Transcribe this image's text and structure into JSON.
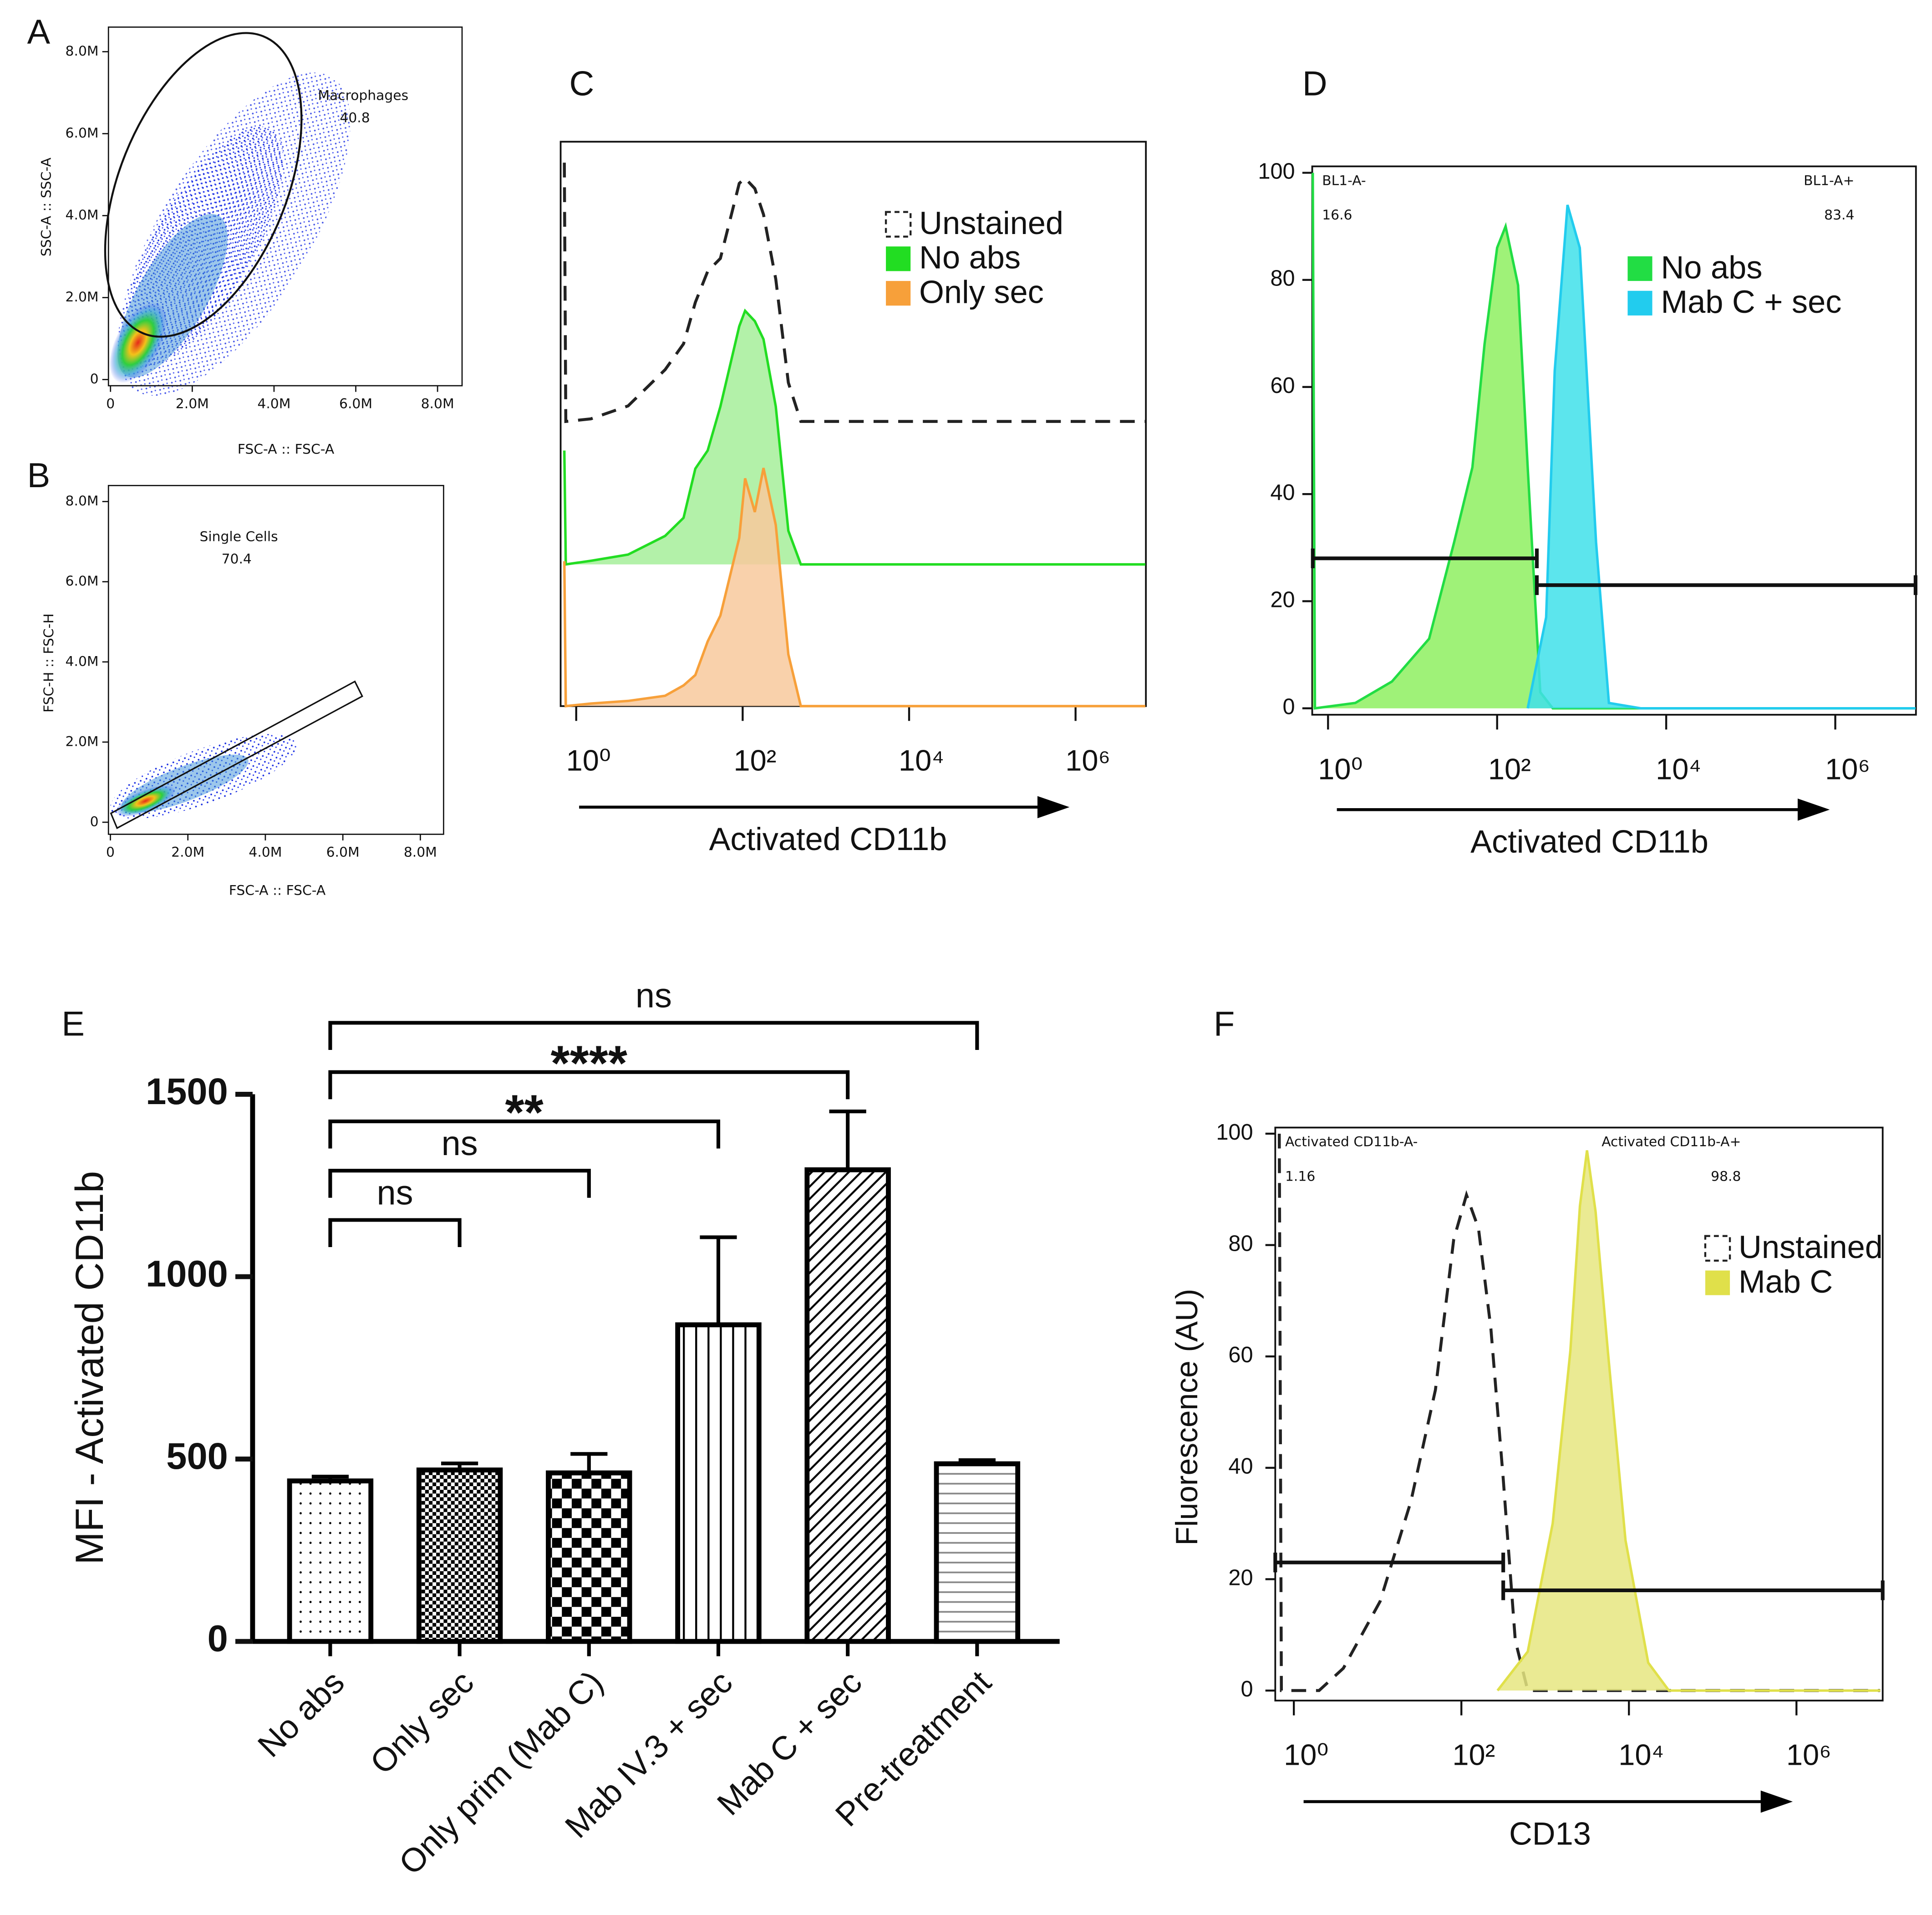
{
  "chart_data": [
    {
      "type": "scatter",
      "label": "A",
      "xlabel": "FSC-A :: FSC-A",
      "ylabel": "SSC-A :: SSC-A",
      "xlim": [
        -50000,
        8600000
      ],
      "ylim": [
        -150000,
        8600000
      ],
      "xticks": [
        0,
        {
          "value": 2000000,
          "label": "2.0M"
        },
        {
          "value": 4000000,
          "label": "4.0M"
        },
        {
          "value": 6000000,
          "label": "6.0M"
        },
        {
          "value": 8000000,
          "label": "8.0M"
        }
      ],
      "yticks": [
        0,
        {
          "value": 2000000,
          "label": "2.0M"
        },
        {
          "value": 4000000,
          "label": "4.0M"
        },
        {
          "value": 6000000,
          "label": "6.0M"
        },
        {
          "value": 8000000,
          "label": "8.0M"
        }
      ],
      "gate": {
        "name": "Macrophages",
        "value": 40.8
      }
    },
    {
      "type": "scatter",
      "label": "B",
      "xlabel": "FSC-A :: FSC-A",
      "ylabel": "FSC-H :: FSC-H",
      "xlim": [
        -50000,
        8600000
      ],
      "ylim": [
        -300000,
        8400000
      ],
      "xticks": [
        0,
        {
          "value": 2000000,
          "label": "2.0M"
        },
        {
          "value": 4000000,
          "label": "4.0M"
        },
        {
          "value": 6000000,
          "label": "6.0M"
        },
        {
          "value": 8000000,
          "label": "8.0M"
        }
      ],
      "yticks": [
        0,
        {
          "value": 2000000,
          "label": "2.0M"
        },
        {
          "value": 4000000,
          "label": "4.0M"
        },
        {
          "value": 6000000,
          "label": "6.0M"
        },
        {
          "value": 8000000,
          "label": "8.0M"
        }
      ],
      "gate": {
        "name": "Single Cells",
        "value": 70.4
      }
    },
    {
      "type": "line",
      "label": "C",
      "xlabel": "Activated CD11b",
      "xscale": "log",
      "xlim": [
        0.65,
        7000000
      ],
      "xticks": [
        {
          "value": 1,
          "label": "10⁰"
        },
        {
          "value": 100,
          "label": "10²"
        },
        {
          "value": 10000,
          "label": "10⁴"
        },
        {
          "value": 1000000,
          "label": "10⁶"
        }
      ],
      "x": [
        0.72,
        0.75,
        1.5,
        4.2,
        11.7,
        19.5,
        27,
        38,
        54,
        91,
        107,
        140,
        178,
        250,
        354,
        500,
        6900000
      ],
      "series": [
        {
          "name": "Unstained",
          "color": "#222222",
          "dash": true,
          "values": [
            100,
            0,
            1,
            6,
            20,
            30,
            46,
            58,
            63,
            92,
            94,
            90,
            80,
            55,
            15,
            0,
            0
          ]
        },
        {
          "name": "No abs",
          "color": "#22dd22",
          "fill": "#a6ef9a",
          "values": [
            44,
            0,
            1.4,
            3.8,
            11,
            18,
            37,
            44,
            61,
            92,
            98,
            94,
            87,
            61,
            13,
            0,
            0
          ]
        },
        {
          "name": "Only sec",
          "color": "#f7a03a",
          "fill": "#f8c99c",
          "values": [
            56,
            0,
            1,
            2,
            4,
            8,
            12,
            25,
            35,
            65,
            88,
            75,
            92,
            70,
            20,
            0,
            0
          ]
        }
      ]
    },
    {
      "type": "line",
      "label": "D",
      "xlabel": "Activated CD11b",
      "xscale": "log",
      "xlim": [
        0.65,
        9000000
      ],
      "ylim": [
        -1.2,
        101.2
      ],
      "xticks": [
        {
          "value": 1,
          "label": "10⁰"
        },
        {
          "value": 100,
          "label": "10²"
        },
        {
          "value": 10000,
          "label": "10⁴"
        },
        {
          "value": 1000000,
          "label": "10⁶"
        }
      ],
      "yticks": [
        0,
        20,
        40,
        60,
        80,
        100
      ],
      "series": [
        {
          "name": "No abs",
          "color": "#22dd44",
          "fill": "#8ef060",
          "x": [
            0.66,
            0.7,
            2.1,
            5.7,
            15.7,
            31,
            51,
            71,
            100,
            126,
            177,
            230,
            324,
            455,
            8900000
          ],
          "values": [
            100,
            0,
            1,
            5,
            13,
            31,
            45,
            68,
            86,
            90,
            79,
            45,
            3,
            0,
            0
          ]
        },
        {
          "name": "Mab C + sec",
          "color": "#22ccee",
          "fill": "#3fe0ea",
          "x": [
            230,
            380,
            480,
            680,
            950,
            1480,
            2100,
            5000,
            8900000
          ],
          "values": [
            0,
            17,
            63,
            94,
            86,
            31,
            1,
            0,
            0
          ]
        }
      ],
      "gates": [
        {
          "name": "BL1-A-",
          "value": 16.6,
          "x": [
            0.66,
            295
          ],
          "y": 28
        },
        {
          "name": "BL1-A+",
          "value": 83.4,
          "x": [
            295,
            8900000
          ],
          "y": 23
        }
      ]
    },
    {
      "type": "bar",
      "label": "E",
      "ylabel": "MFI - Activated CD11b",
      "ylim": [
        0,
        1500
      ],
      "yticks": [
        0,
        500,
        1000,
        1500
      ],
      "categories": [
        "No abs",
        "Only sec",
        "Only prim (Mab C)",
        "Mab IV.3 + sec",
        "Mab C + sec",
        "Pre-treatment"
      ],
      "values": [
        440,
        470,
        462,
        868,
        1293,
        487
      ],
      "errors": [
        12,
        18,
        52,
        240,
        160,
        10
      ],
      "color": "#000000",
      "annotations": [
        {
          "label": "ns",
          "from": 0,
          "to": 1
        },
        {
          "label": "ns",
          "from": 0,
          "to": 2
        },
        {
          "label": "**",
          "from": 0,
          "to": 3
        },
        {
          "label": "****",
          "from": 0,
          "to": 4
        },
        {
          "label": "ns",
          "from": 0,
          "to": 5
        }
      ]
    },
    {
      "type": "line",
      "label": "F",
      "xlabel": "CD13",
      "ylabel": "Fluorescence (AU)",
      "xscale": "log",
      "xlim": [
        0.6,
        10700000
      ],
      "ylim": [
        -1.8,
        101.1
      ],
      "xticks": [
        {
          "value": 1,
          "label": "10⁰"
        },
        {
          "value": 100,
          "label": "10²"
        },
        {
          "value": 10000,
          "label": "10⁴"
        },
        {
          "value": 1000000,
          "label": "10⁶"
        }
      ],
      "yticks": [
        0,
        20,
        40,
        60,
        80,
        100
      ],
      "series": [
        {
          "name": "Unstained",
          "color": "#222222",
          "dash": true,
          "x": [
            0.67,
            0.71,
            2,
            3.9,
            10.7,
            25,
            49,
            81,
            115,
            160,
            225,
            316,
            440,
            620,
            10000000
          ],
          "values": [
            100,
            0,
            0,
            4,
            16,
            34,
            54,
            81,
            89,
            83,
            65,
            38,
            9,
            0,
            0
          ]
        },
        {
          "name": "Mab C",
          "color": "#e0e04a",
          "fill": "#e6e680",
          "x": [
            270,
            620,
            1230,
            2000,
            2600,
            3160,
            4000,
            5600,
            9100,
            17000,
            30000,
            10000000
          ],
          "values": [
            0,
            7,
            30,
            61,
            87,
            97,
            86,
            61,
            27,
            5,
            0,
            0
          ]
        }
      ],
      "gates": [
        {
          "name": "Activated CD11b-A-",
          "value": 1.16,
          "x": [
            0.6,
            316
          ],
          "y": 23
        },
        {
          "name": "Activated CD11b-A+",
          "value": 98.8,
          "x": [
            316,
            10700000
          ],
          "y": 18
        }
      ]
    }
  ]
}
